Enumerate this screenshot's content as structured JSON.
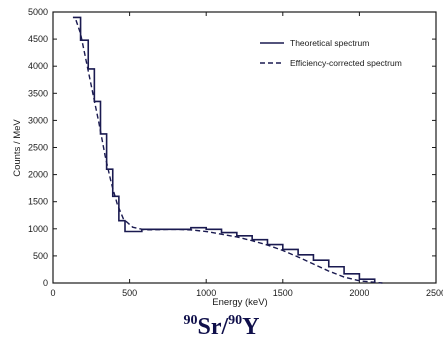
{
  "chart_data": {
    "type": "line",
    "title": "",
    "xlabel": "Energy (keV)",
    "ylabel": "Counts / MeV",
    "xlim": [
      0,
      2500
    ],
    "ylim": [
      0,
      5000
    ],
    "x_ticks": [
      "0",
      "500",
      "1000",
      "1500",
      "2000",
      "2500"
    ],
    "y_ticks": [
      "0",
      "500",
      "1000",
      "1500",
      "2000",
      "2500",
      "3000",
      "3500",
      "4000",
      "4500",
      "5000"
    ],
    "grid": false,
    "legend_position": "top-right",
    "series": [
      {
        "name": "Theoretical spectrum",
        "style": "solid",
        "steps": [
          [
            130,
            4900
          ],
          [
            180,
            4480
          ],
          [
            230,
            3950
          ],
          [
            270,
            3350
          ],
          [
            310,
            2750
          ],
          [
            350,
            2100
          ],
          [
            390,
            1600
          ],
          [
            430,
            1150
          ],
          [
            470,
            950
          ],
          [
            580,
            990
          ],
          [
            900,
            1020
          ],
          [
            1000,
            990
          ],
          [
            1100,
            930
          ],
          [
            1200,
            870
          ],
          [
            1300,
            800
          ],
          [
            1400,
            710
          ],
          [
            1500,
            620
          ],
          [
            1600,
            520
          ],
          [
            1700,
            420
          ],
          [
            1800,
            300
          ],
          [
            1900,
            170
          ],
          [
            2000,
            70
          ],
          [
            2100,
            0
          ]
        ]
      },
      {
        "name": "Efficiency-corrected spectrum",
        "style": "dashed",
        "points": [
          [
            150,
            4850
          ],
          [
            180,
            4600
          ],
          [
            220,
            4050
          ],
          [
            260,
            3500
          ],
          [
            300,
            2950
          ],
          [
            340,
            2350
          ],
          [
            380,
            1850
          ],
          [
            420,
            1450
          ],
          [
            460,
            1180
          ],
          [
            520,
            1030
          ],
          [
            600,
            980
          ],
          [
            800,
            990
          ],
          [
            900,
            980
          ],
          [
            1000,
            950
          ],
          [
            1100,
            900
          ],
          [
            1200,
            850
          ],
          [
            1300,
            780
          ],
          [
            1400,
            700
          ],
          [
            1500,
            600
          ],
          [
            1600,
            480
          ],
          [
            1700,
            350
          ],
          [
            1800,
            220
          ],
          [
            1900,
            110
          ],
          [
            2000,
            40
          ],
          [
            2150,
            0
          ]
        ]
      }
    ]
  },
  "caption": {
    "sup1": "90",
    "el1": "Sr/",
    "sup2": "90",
    "el2": "Y"
  },
  "colors": {
    "line": "#1a1a50",
    "axis": "#1a1a1a",
    "caption": "#0f0f4a"
  }
}
